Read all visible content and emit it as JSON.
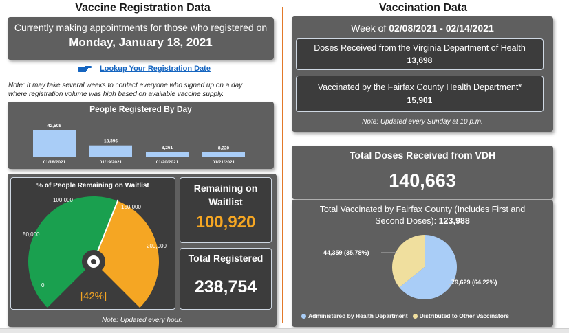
{
  "left": {
    "title": "Vaccine Registration Data",
    "appointments": {
      "line1": "Currently making appointments for those who registered on",
      "date": "Monday, January 18, 2021"
    },
    "lookup_link": "Lookup Your Registration Date",
    "note_line1": "Note: It may take several weeks to contact everyone who signed up on a day",
    "note_line2": "where registration volume was high based on available vaccine supply.",
    "people_registered": {
      "title": "People Registered By Day"
    },
    "gauge": {
      "title": "% of People Remaining on Waitlist",
      "labels": [
        "0",
        "50,000",
        "100,000",
        "150,000",
        "200,000"
      ],
      "percent_label": "[42%]",
      "fraction": 0.42,
      "colors": {
        "filled": "#1aa04f",
        "remaining": "#f5a623"
      }
    },
    "remaining": {
      "label_line1": "Remaining on",
      "label_line2": "Waitlist",
      "value": "100,920"
    },
    "total_registered": {
      "label": "Total Registered",
      "value": "238,754"
    },
    "bottom_note": "Note: Updated every hour."
  },
  "right": {
    "title": "Vaccination Data",
    "week_prefix": "Week of ",
    "week_range": "02/08/2021 - 02/14/2021",
    "doses_received": {
      "label": "Doses Received from the Virginia Department of Health",
      "value": "13,698"
    },
    "vaccinated": {
      "label": "Vaccinated by the Fairfax County Health Department*",
      "value": "15,901"
    },
    "week_note": "Note: Updated every Sunday at 10 p.m.",
    "total_doses": {
      "label": "Total Doses Received from VDH",
      "value": "140,663"
    },
    "total_vaccinated": {
      "title_line1": "Total Vaccinated by Fairfax County (Includes First and",
      "title_line2_prefix": "Second Doses): ",
      "title_line2_value": "123,988"
    },
    "pie_labels": {
      "a": "79,629 (64.22%)",
      "b": "44,359 (35.78%)"
    },
    "legend": {
      "a": "Administered by Health Department",
      "b": "Distributed to Other Vaccinators"
    }
  },
  "chart_data": [
    {
      "type": "bar",
      "title": "People Registered By Day",
      "categories": [
        "01/18/2021",
        "01/19/2021",
        "01/20/2021",
        "01/21/2021"
      ],
      "values": [
        42508,
        18396,
        8261,
        8220
      ],
      "value_labels": [
        "42,508",
        "18,396",
        "8,261",
        "8,220"
      ],
      "ylim": [
        0,
        42508
      ],
      "color": "#a9cdf7"
    },
    {
      "type": "pie",
      "title": "Total Vaccinated by Fairfax County",
      "series": [
        {
          "name": "Administered by Health Department",
          "value": 79629,
          "percent": 64.22,
          "color": "#a9cdf7"
        },
        {
          "name": "Distributed to Other Vaccinators",
          "value": 44359,
          "percent": 35.78,
          "color": "#f0df9e"
        }
      ],
      "legend_position": "bottom"
    }
  ]
}
